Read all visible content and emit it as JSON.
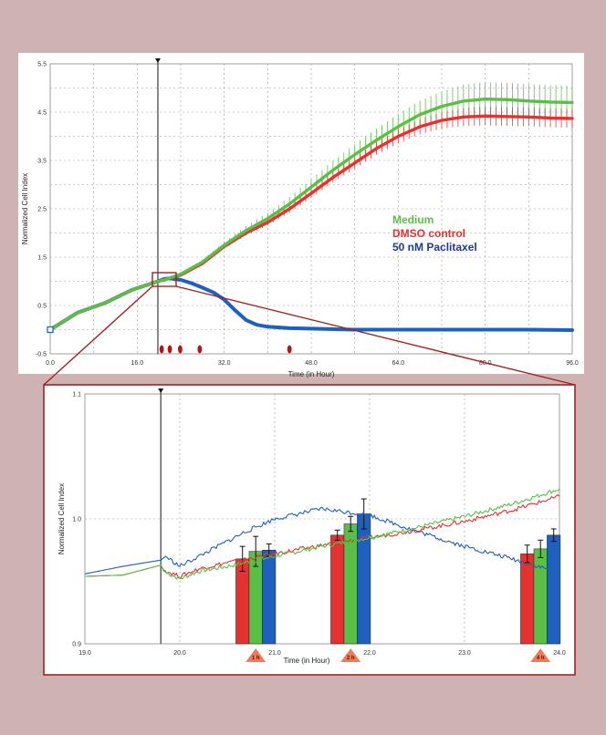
{
  "colors": {
    "background": "#cfb3b3",
    "medium": "#5bbf47",
    "dmso": "#e53230",
    "paclitaxel": "#1f5fbe",
    "connector": "#a02323",
    "marker": "#f07a5a",
    "event": "#b5151a"
  },
  "chart_data": [
    {
      "type": "line",
      "xlabel": "Time (in Hour)",
      "ylabel": "Normalized Cell Index",
      "xlim": [
        0,
        96
      ],
      "ylim": [
        -0.5,
        5.5
      ],
      "xticks": [
        "0.0",
        "16.0",
        "32.0",
        "48.0",
        "64.0",
        "80.0",
        "96.0"
      ],
      "yticks": [
        "-0.5",
        "0.5",
        "1.5",
        "2.5",
        "3.5",
        "4.5",
        "5.5"
      ],
      "grid": true,
      "legend_position": "right",
      "vline_x": 19.8,
      "event_markers_x": [
        20.5,
        22.0,
        23.9,
        27.5,
        44.0
      ],
      "error_bars": true,
      "series": [
        {
          "name": "Medium",
          "x": [
            0,
            5,
            10,
            15,
            19.8,
            21,
            24,
            28,
            32,
            36,
            40,
            44,
            48,
            52,
            56,
            60,
            64,
            68,
            72,
            76,
            80,
            84,
            88,
            92,
            96
          ],
          "y": [
            0.0,
            0.35,
            0.55,
            0.82,
            1.0,
            1.03,
            1.15,
            1.4,
            1.75,
            2.05,
            2.3,
            2.6,
            2.95,
            3.3,
            3.62,
            3.92,
            4.2,
            4.45,
            4.62,
            4.73,
            4.77,
            4.76,
            4.73,
            4.71,
            4.7
          ]
        },
        {
          "name": "DMSO control",
          "x": [
            0,
            5,
            10,
            15,
            19.8,
            21,
            24,
            28,
            32,
            36,
            40,
            44,
            48,
            52,
            56,
            60,
            64,
            68,
            72,
            76,
            80,
            84,
            88,
            92,
            96
          ],
          "y": [
            0.0,
            0.35,
            0.55,
            0.82,
            1.0,
            1.03,
            1.13,
            1.37,
            1.72,
            2.0,
            2.22,
            2.5,
            2.82,
            3.15,
            3.45,
            3.75,
            4.0,
            4.2,
            4.33,
            4.4,
            4.42,
            4.41,
            4.4,
            4.38,
            4.37
          ]
        },
        {
          "name": "50 nM Paclitaxel",
          "x": [
            0,
            5,
            10,
            15,
            19.8,
            21,
            22,
            24,
            26,
            28,
            30,
            32,
            34,
            36,
            38,
            40,
            44,
            48,
            56,
            64,
            72,
            80,
            88,
            96
          ],
          "y": [
            0.0,
            0.35,
            0.55,
            0.82,
            1.0,
            1.05,
            1.06,
            1.03,
            0.96,
            0.87,
            0.77,
            0.62,
            0.4,
            0.2,
            0.1,
            0.06,
            0.03,
            0.02,
            0.0,
            0.0,
            0.0,
            0.0,
            0.0,
            -0.01
          ]
        }
      ]
    },
    {
      "type": "bar",
      "xlabel": "Time (in Hour)",
      "ylabel": "Normalized Cell Index",
      "xlim": [
        19.0,
        24.0
      ],
      "ylim": [
        0.9,
        1.1
      ],
      "xticks": [
        "19.0",
        "20.0",
        "21.0",
        "22.0",
        "23.0",
        "24.0"
      ],
      "yticks": [
        "0.9",
        "1.0",
        "1.1"
      ],
      "grid": true,
      "vline_x": 19.8,
      "lines": [
        {
          "name": "Medium",
          "x": [
            19.0,
            19.4,
            19.8,
            19.83,
            20.0,
            20.2,
            20.5,
            21.0,
            21.5,
            22.0,
            22.5,
            23.0,
            23.5,
            24.0
          ],
          "y": [
            0.954,
            0.955,
            0.963,
            0.958,
            0.952,
            0.958,
            0.962,
            0.97,
            0.978,
            0.985,
            0.993,
            1.002,
            1.012,
            1.024
          ]
        },
        {
          "name": "DMSO control",
          "x": [
            19.0,
            19.4,
            19.8,
            19.83,
            20.0,
            20.2,
            20.5,
            21.0,
            21.5,
            22.0,
            22.5,
            23.0,
            23.5,
            24.0
          ],
          "y": [
            0.954,
            0.955,
            0.963,
            0.959,
            0.954,
            0.96,
            0.965,
            0.972,
            0.979,
            0.985,
            0.991,
            0.998,
            1.007,
            1.018
          ]
        },
        {
          "name": "50 nM Paclitaxel",
          "x": [
            19.0,
            19.4,
            19.8,
            19.85,
            20.0,
            20.3,
            20.7,
            21.0,
            21.5,
            22.0,
            22.5,
            23.0,
            23.5,
            24.0
          ],
          "y": [
            0.956,
            0.962,
            0.967,
            0.97,
            0.962,
            0.974,
            0.99,
            1.0,
            1.008,
            1.003,
            0.99,
            0.978,
            0.968,
            0.957
          ]
        }
      ],
      "bar_groups": [
        {
          "label": "1 h",
          "x": 20.8,
          "values": [
            0.968,
            0.974,
            0.975
          ],
          "errors": [
            0.01,
            0.012,
            0.005
          ]
        },
        {
          "label": "2 h",
          "x": 21.8,
          "values": [
            0.987,
            0.996,
            1.004
          ],
          "errors": [
            0.004,
            0.006,
            0.012
          ]
        },
        {
          "label": "4 h",
          "x": 23.8,
          "values": [
            0.972,
            0.976,
            0.987
          ],
          "errors": [
            0.007,
            0.007,
            0.005
          ]
        }
      ]
    }
  ],
  "legend": {
    "medium": "Medium",
    "dmso": "DMSO control",
    "paclitaxel": "50 nM Paclitaxel"
  }
}
